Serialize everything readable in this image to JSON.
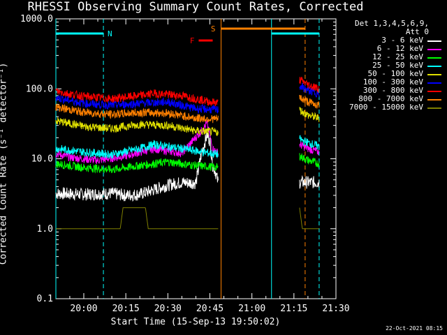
{
  "chart_data": {
    "type": "line",
    "title": "RHESSI Observing Summary Count Rates, Corrected",
    "xlabel": "Start Time (15-Sep-13 19:50:02)",
    "ylabel": "Corrected Count Rate (s⁻¹ detector⁻¹)",
    "yscale": "log",
    "ylim": [
      0.1,
      1000
    ],
    "xlim": [
      "19:50:02",
      "21:30:00"
    ],
    "x_ticks": [
      "20:00",
      "20:15",
      "20:30",
      "20:45",
      "21:00",
      "21:15",
      "21:30"
    ],
    "y_ticks": [
      "0.1",
      "1.0",
      "10.0",
      "100.0",
      "1000.0"
    ],
    "legend": {
      "header": [
        "Det 1,3,4,5,6,9,",
        "Att 0"
      ],
      "placement": "right"
    },
    "series": [
      {
        "name": "3 - 6 keV",
        "color": "#ffffff",
        "points": [
          [
            "19:50",
            3.2
          ],
          [
            "20:00",
            3.1
          ],
          [
            "20:10",
            3.2
          ],
          [
            "20:15",
            3.0
          ],
          [
            "20:20",
            3.1
          ],
          [
            "20:30",
            4.2
          ],
          [
            "20:35",
            4.6
          ],
          [
            "20:40",
            4.5
          ],
          [
            "20:42",
            12.0
          ],
          [
            "20:44",
            22.0
          ],
          [
            "20:45",
            18.0
          ],
          [
            "20:46",
            8.0
          ],
          [
            "20:47",
            6.5
          ],
          [
            "20:48",
            4.5
          ]
        ],
        "segment2": [
          [
            "21:17",
            4.6
          ],
          [
            "21:20",
            4.6
          ],
          [
            "21:24",
            4.6
          ]
        ]
      },
      {
        "name": "6 - 12 keV",
        "color": "#ff00ff",
        "points": [
          [
            "19:50",
            12
          ],
          [
            "19:55",
            10.5
          ],
          [
            "20:05",
            9.5
          ],
          [
            "20:15",
            11
          ],
          [
            "20:25",
            14
          ],
          [
            "20:35",
            12
          ],
          [
            "20:42",
            25
          ],
          [
            "20:44",
            32
          ],
          [
            "20:46",
            14
          ],
          [
            "20:48",
            12
          ]
        ],
        "segment2": [
          [
            "21:17",
            16
          ],
          [
            "21:20",
            14
          ],
          [
            "21:24",
            12.5
          ]
        ]
      },
      {
        "name": "12 - 25 keV",
        "color": "#00ff00",
        "points": [
          [
            "19:50",
            8.5
          ],
          [
            "20:00",
            7.5
          ],
          [
            "20:10",
            7
          ],
          [
            "20:20",
            8
          ],
          [
            "20:30",
            9
          ],
          [
            "20:40",
            8
          ],
          [
            "20:48",
            7.5
          ]
        ],
        "segment2": [
          [
            "21:17",
            11
          ],
          [
            "21:20",
            9.5
          ],
          [
            "21:24",
            8.5
          ]
        ]
      },
      {
        "name": "25 - 50 keV",
        "color": "#00ffff",
        "points": [
          [
            "19:50",
            14
          ],
          [
            "20:00",
            12.5
          ],
          [
            "20:10",
            11.5
          ],
          [
            "20:20",
            14
          ],
          [
            "20:25",
            16
          ],
          [
            "20:35",
            14
          ],
          [
            "20:45",
            12
          ],
          [
            "20:48",
            11.5
          ]
        ],
        "segment2": [
          [
            "21:17",
            19
          ],
          [
            "21:20",
            17
          ],
          [
            "21:24",
            15
          ]
        ]
      },
      {
        "name": "50 - 100 keV",
        "color": "#e0e000",
        "points": [
          [
            "19:50",
            35
          ],
          [
            "20:00",
            29
          ],
          [
            "20:10",
            27
          ],
          [
            "20:20",
            31
          ],
          [
            "20:30",
            30
          ],
          [
            "20:40",
            25
          ],
          [
            "20:48",
            24
          ]
        ],
        "segment2": [
          [
            "21:17",
            50
          ],
          [
            "21:20",
            42
          ],
          [
            "21:24",
            38
          ]
        ]
      },
      {
        "name": "100 - 300 keV",
        "color": "#0000ff",
        "points": [
          [
            "19:50",
            75
          ],
          [
            "20:00",
            62
          ],
          [
            "20:10",
            58
          ],
          [
            "20:20",
            62
          ],
          [
            "20:30",
            65
          ],
          [
            "20:40",
            52
          ],
          [
            "20:48",
            50
          ]
        ],
        "segment2": [
          [
            "21:17",
            110
          ],
          [
            "21:20",
            95
          ],
          [
            "21:24",
            85
          ]
        ]
      },
      {
        "name": "300 - 800 keV",
        "color": "#ff0000",
        "points": [
          [
            "19:50",
            92
          ],
          [
            "20:00",
            78
          ],
          [
            "20:10",
            72
          ],
          [
            "20:20",
            80
          ],
          [
            "20:25",
            86
          ],
          [
            "20:35",
            80
          ],
          [
            "20:45",
            65
          ],
          [
            "20:48",
            63
          ]
        ],
        "segment2": [
          [
            "21:17",
            135
          ],
          [
            "21:20",
            115
          ],
          [
            "21:24",
            100
          ]
        ]
      },
      {
        "name": "800 - 7000 keV",
        "color": "#ff8000",
        "points": [
          [
            "19:50",
            55
          ],
          [
            "20:00",
            46
          ],
          [
            "20:10",
            43
          ],
          [
            "20:20",
            46
          ],
          [
            "20:30",
            45
          ],
          [
            "20:40",
            38
          ],
          [
            "20:48",
            37
          ]
        ],
        "segment2": [
          [
            "21:17",
            75
          ],
          [
            "21:20",
            65
          ],
          [
            "21:24",
            58
          ]
        ]
      },
      {
        "name": "7000 - 15000 keV",
        "color": "#808000",
        "points": [
          [
            "19:50",
            1.0
          ],
          [
            "20:13",
            1.0
          ],
          [
            "20:14",
            2.0
          ],
          [
            "20:22",
            2.0
          ],
          [
            "20:23",
            1.0
          ],
          [
            "20:48",
            1.0
          ]
        ],
        "segment2": [
          [
            "21:17",
            2.0
          ],
          [
            "21:18",
            1.0
          ],
          [
            "21:24",
            1.0
          ]
        ]
      }
    ],
    "flags": [
      {
        "label": "N",
        "color": "#00ffff",
        "start": "19:50",
        "end": "20:07"
      },
      {
        "label": "F",
        "color": "#ff0000",
        "start": "20:41",
        "end": "20:46"
      },
      {
        "label": "S",
        "color": "#ff8000",
        "start": "20:49",
        "end": "21:19"
      },
      {
        "label": "",
        "color": "#00ffff",
        "start": "21:07",
        "end": "21:24"
      }
    ],
    "vlines": [
      {
        "time": "19:50:02",
        "color": "#00ffff",
        "style": "solid"
      },
      {
        "time": "20:07",
        "color": "#00ffff",
        "style": "dashed"
      },
      {
        "time": "20:49",
        "color": "#ff8000",
        "style": "solid"
      },
      {
        "time": "21:07",
        "color": "#00ffff",
        "style": "solid"
      },
      {
        "time": "21:19",
        "color": "#ff8000",
        "style": "dashed"
      },
      {
        "time": "21:24",
        "color": "#00ffff",
        "style": "dashed"
      }
    ]
  },
  "footer": "22-Oct-2021 08:15"
}
